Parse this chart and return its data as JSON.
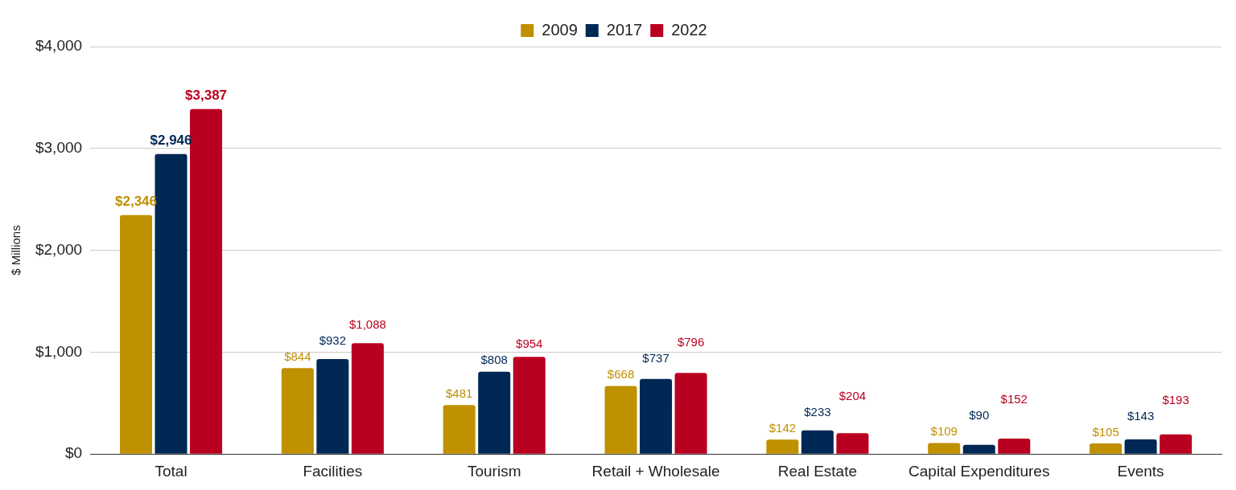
{
  "chart_data": {
    "type": "bar",
    "ylabel": "$ Millions",
    "categories": [
      "Total",
      "Facilities",
      "Tourism",
      "Retail + Wholesale",
      "Real Estate",
      "Capital Expenditures",
      "Events"
    ],
    "series": [
      {
        "name": "2009",
        "color": "#bf9000",
        "values": [
          2346,
          844,
          481,
          668,
          142,
          109,
          105
        ],
        "value_labels": [
          "$2,346",
          "$844",
          "$481",
          "$668",
          "$142",
          "$109",
          "$105"
        ]
      },
      {
        "name": "2017",
        "color": "#002855",
        "values": [
          2946,
          932,
          808,
          737,
          233,
          90,
          143
        ],
        "value_labels": [
          "$2,946",
          "$932",
          "$808",
          "$737",
          "$233",
          "$90",
          "$143"
        ]
      },
      {
        "name": "2022",
        "color": "#ba0020",
        "values": [
          3387,
          1088,
          954,
          796,
          204,
          152,
          193
        ],
        "value_labels": [
          "$3,387",
          "$1,088",
          "$954",
          "$796",
          "$204",
          "$152",
          "$193"
        ]
      }
    ],
    "ylim": [
      0,
      4000
    ],
    "yticks": [
      {
        "value": 0,
        "label": "$0"
      },
      {
        "value": 1000,
        "label": "$1,000"
      },
      {
        "value": 2000,
        "label": "$2,000"
      },
      {
        "value": 3000,
        "label": "$3,000"
      },
      {
        "value": 4000,
        "label": "$4,000"
      }
    ],
    "grid": "y",
    "legend": "top"
  }
}
